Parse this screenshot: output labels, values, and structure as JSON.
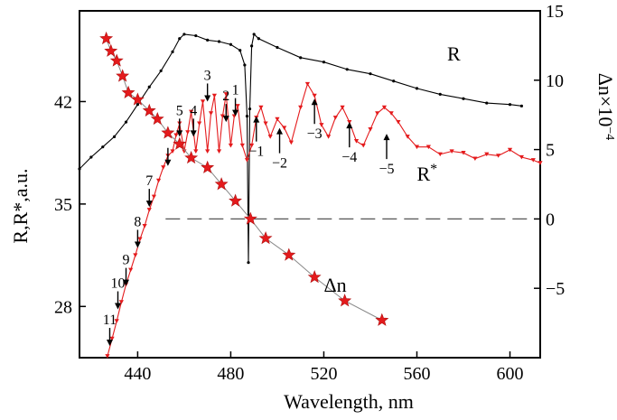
{
  "chart_data": {
    "type": "line",
    "xlabel": "Wavelength, nm",
    "ylabel_left": "R,R*,a.u.",
    "ylabel_right": "Δn×10",
    "ylabel_right_exponent": "−4",
    "xlim": [
      415,
      613
    ],
    "ylim_left": [
      24.5,
      48.2
    ],
    "ylim_right": [
      -10,
      15
    ],
    "xticks": [
      440,
      480,
      520,
      560,
      600
    ],
    "yticks_left": [
      28,
      35,
      42
    ],
    "yticks_right": [
      -5,
      0,
      5,
      10,
      15
    ],
    "grid": false,
    "reference_line": {
      "axis": "right",
      "value": 0,
      "style": "dashed",
      "x_range": [
        452,
        613
      ]
    },
    "series": [
      {
        "name": "R",
        "axis": "left",
        "color": "#000000",
        "marker": "dot",
        "x": [
          415,
          420,
          425,
          430,
          435,
          440,
          445,
          450,
          455,
          458,
          460,
          465,
          470,
          475,
          480,
          484,
          486,
          487,
          487.6,
          488.2,
          489,
          490,
          492,
          500,
          510,
          520,
          530,
          540,
          550,
          560,
          570,
          580,
          590,
          600,
          605
        ],
        "y": [
          37.4,
          38.2,
          38.9,
          39.6,
          40.6,
          41.8,
          43.0,
          44.1,
          45.4,
          46.3,
          46.6,
          46.5,
          46.2,
          46.1,
          45.9,
          45.5,
          44.5,
          41.0,
          31.0,
          41.5,
          45.8,
          46.6,
          46.3,
          45.7,
          45.0,
          44.7,
          44.2,
          43.9,
          43.4,
          42.9,
          42.5,
          42.2,
          41.9,
          41.8,
          41.7
        ]
      },
      {
        "name": "R*",
        "axis": "left",
        "color": "#e41a1c",
        "marker": "triangle",
        "x": [
          427,
          429,
          431,
          433,
          435,
          437,
          439,
          441,
          443,
          445,
          447,
          449,
          451,
          453,
          455,
          456.5,
          458,
          460,
          461.5,
          463,
          465,
          466.5,
          468,
          470,
          471.5,
          473,
          475,
          476.5,
          478,
          480,
          481.5,
          483,
          485,
          487,
          489,
          491,
          493,
          495,
          497,
          500,
          503,
          506,
          510,
          513,
          516,
          519,
          522,
          525,
          528,
          531,
          534,
          537,
          540,
          543,
          546,
          549,
          552,
          556,
          560,
          565,
          570,
          575,
          580,
          585,
          590,
          595,
          600,
          605,
          610,
          613
        ],
        "y": [
          24.6,
          25.8,
          27.0,
          28.3,
          29.5,
          30.5,
          31.5,
          32.6,
          33.5,
          34.6,
          35.5,
          36.6,
          37.5,
          38.3,
          38.6,
          39.7,
          40.5,
          38.6,
          39.9,
          41.3,
          38.6,
          40.5,
          42.0,
          38.6,
          41.2,
          42.4,
          38.6,
          41.0,
          42.5,
          39.0,
          41.0,
          41.7,
          39.0,
          38.0,
          39.0,
          40.9,
          41.6,
          40.5,
          39.6,
          40.8,
          40.2,
          39.2,
          41.6,
          43.2,
          42.4,
          40.4,
          39.6,
          40.9,
          41.6,
          40.6,
          39.3,
          39.0,
          40.1,
          41.2,
          41.6,
          41.2,
          40.6,
          39.6,
          38.9,
          38.9,
          38.4,
          38.6,
          38.5,
          38.1,
          38.4,
          38.3,
          38.7,
          38.2,
          38.0,
          37.8
        ]
      },
      {
        "name": "Δn",
        "axis": "right",
        "color": "#e41a1c",
        "marker": "star",
        "line_color": "#888888",
        "x": [
          426.5,
          428.5,
          431,
          433.5,
          436,
          440,
          445,
          448.5,
          453,
          458,
          463,
          470,
          476,
          482,
          488.5,
          495,
          505,
          516,
          529,
          545
        ],
        "y": [
          13.0,
          12.1,
          11.4,
          10.3,
          9.1,
          8.6,
          7.8,
          7.2,
          6.2,
          5.4,
          4.4,
          3.7,
          2.5,
          1.3,
          0.0,
          -1.4,
          -2.6,
          -4.2,
          -5.9,
          -7.3
        ]
      }
    ],
    "series_labels": [
      {
        "series": "R",
        "text": "R",
        "x": 573,
        "y": 44.8
      },
      {
        "series": "R*",
        "text": "R",
        "sup": "*",
        "x": 560,
        "y": 36.6
      },
      {
        "series": "Δn",
        "text": "Δn",
        "x": 520,
        "y": 29.0
      }
    ],
    "annotations": [
      {
        "label": "11",
        "x": 428,
        "y": 25.3,
        "dir": "down"
      },
      {
        "label": "10",
        "x": 431.5,
        "y": 27.8,
        "dir": "down"
      },
      {
        "label": "9",
        "x": 435,
        "y": 29.4,
        "dir": "down"
      },
      {
        "label": "8",
        "x": 440,
        "y": 32.0,
        "dir": "down"
      },
      {
        "label": "7",
        "x": 445,
        "y": 34.8,
        "dir": "down"
      },
      {
        "label": "",
        "x": 453,
        "y": 37.6,
        "dir": "down"
      },
      {
        "label": "5",
        "x": 458,
        "y": 39.6,
        "dir": "down"
      },
      {
        "label": "4",
        "x": 464,
        "y": 39.6,
        "dir": "down"
      },
      {
        "label": "3",
        "x": 470,
        "y": 42.0,
        "dir": "down"
      },
      {
        "label": "2",
        "x": 478,
        "y": 40.6,
        "dir": "down"
      },
      {
        "label": "1",
        "x": 482,
        "y": 41.0,
        "dir": "down"
      },
      {
        "label": "−1",
        "x": 491,
        "y": 41.0,
        "dir": "up"
      },
      {
        "label": "−2",
        "x": 501,
        "y": 40.2,
        "dir": "up"
      },
      {
        "label": "−3",
        "x": 516,
        "y": 42.2,
        "dir": "up"
      },
      {
        "label": "−4",
        "x": 531,
        "y": 40.6,
        "dir": "up"
      },
      {
        "label": "−5",
        "x": 547,
        "y": 39.8,
        "dir": "up"
      }
    ]
  }
}
